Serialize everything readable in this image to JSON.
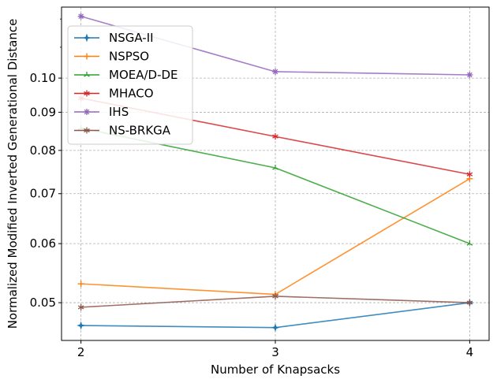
{
  "chart_data": {
    "type": "line",
    "xlabel": "Number of Knapsacks",
    "ylabel": "Normalized Modified Inverted Generational Distance",
    "x": [
      2,
      3,
      4
    ],
    "x_ticks": [
      "2",
      "3",
      "4"
    ],
    "y_scale": "log",
    "ylim": [
      0.0445,
      0.1245
    ],
    "y_ticks": [
      0.05,
      0.06,
      0.07,
      0.08,
      0.09,
      0.1
    ],
    "y_tick_labels": [
      "0.05",
      "0.06",
      "0.07",
      "0.08",
      "0.09",
      "0.10"
    ],
    "grid": true,
    "legend_position": "top-left",
    "series": [
      {
        "name": "NSGA-II",
        "color": "#1f77b4",
        "marker": "star4",
        "values": [
          0.0466,
          0.0463,
          0.05
        ]
      },
      {
        "name": "NSPSO",
        "color": "#ff7f0e",
        "marker": "plus",
        "values": [
          0.053,
          0.0513,
          0.0733
        ]
      },
      {
        "name": "MOEA/D-DE",
        "color": "#2ca02c",
        "marker": "star3",
        "values": [
          0.0857,
          0.0758,
          0.06
        ]
      },
      {
        "name": "MHACO",
        "color": "#d62728",
        "marker": "star6",
        "values": [
          0.094,
          0.0835,
          0.0743
        ]
      },
      {
        "name": "IHS",
        "color": "#9467bd",
        "marker": "star8",
        "values": [
          0.121,
          0.102,
          0.101
        ]
      },
      {
        "name": "NS-BRKGA",
        "color": "#8c564b",
        "marker": "star6",
        "values": [
          0.0493,
          0.051,
          0.05
        ]
      }
    ]
  }
}
